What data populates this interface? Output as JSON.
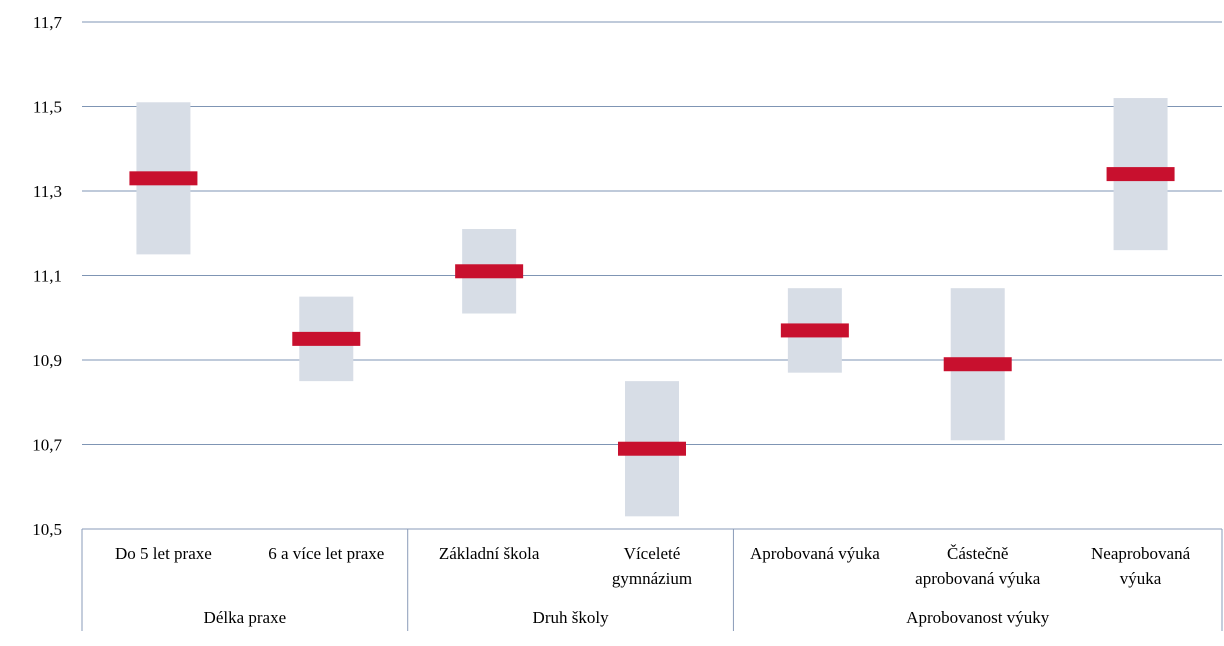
{
  "colors": {
    "grid": "#7f95b4",
    "axis": "#8a9bb8",
    "range_bar": "#d7dde6",
    "mean_marker": "#c8102e"
  },
  "chart_data": {
    "type": "bar",
    "title": "",
    "xlabel": "",
    "ylabel": "",
    "ylim": [
      10.5,
      11.7
    ],
    "yticks": [
      "10,5",
      "10,7",
      "10,9",
      "11,1",
      "11,3",
      "11,5",
      "11,7"
    ],
    "ytick_values": [
      10.5,
      10.7,
      10.9,
      11.1,
      11.3,
      11.5,
      11.7
    ],
    "grid": true,
    "categories": [
      [
        "Do 5 let praxe"
      ],
      [
        "6 a více let praxe"
      ],
      [
        "Základní škola"
      ],
      [
        "Víceleté",
        "gymnázium"
      ],
      [
        "Aprobovaná výuka"
      ],
      [
        "Částečně",
        "aprobovaná výuka"
      ],
      [
        "Neaprobovaná",
        "výuka"
      ]
    ],
    "groups": [
      {
        "label": "Délka praxe",
        "size": 2
      },
      {
        "label": "Druh školy",
        "size": 2
      },
      {
        "label": "Aprobovanost výuky",
        "size": 3
      }
    ],
    "series": [
      {
        "values": [
          11.33,
          10.95,
          11.11,
          10.69,
          10.97,
          10.89,
          11.34
        ]
      }
    ],
    "ranges": [
      [
        11.15,
        11.51
      ],
      [
        10.85,
        11.05
      ],
      [
        11.01,
        11.21
      ],
      [
        10.53,
        10.85
      ],
      [
        10.87,
        11.07
      ],
      [
        10.71,
        11.07
      ],
      [
        11.16,
        11.52
      ]
    ]
  }
}
